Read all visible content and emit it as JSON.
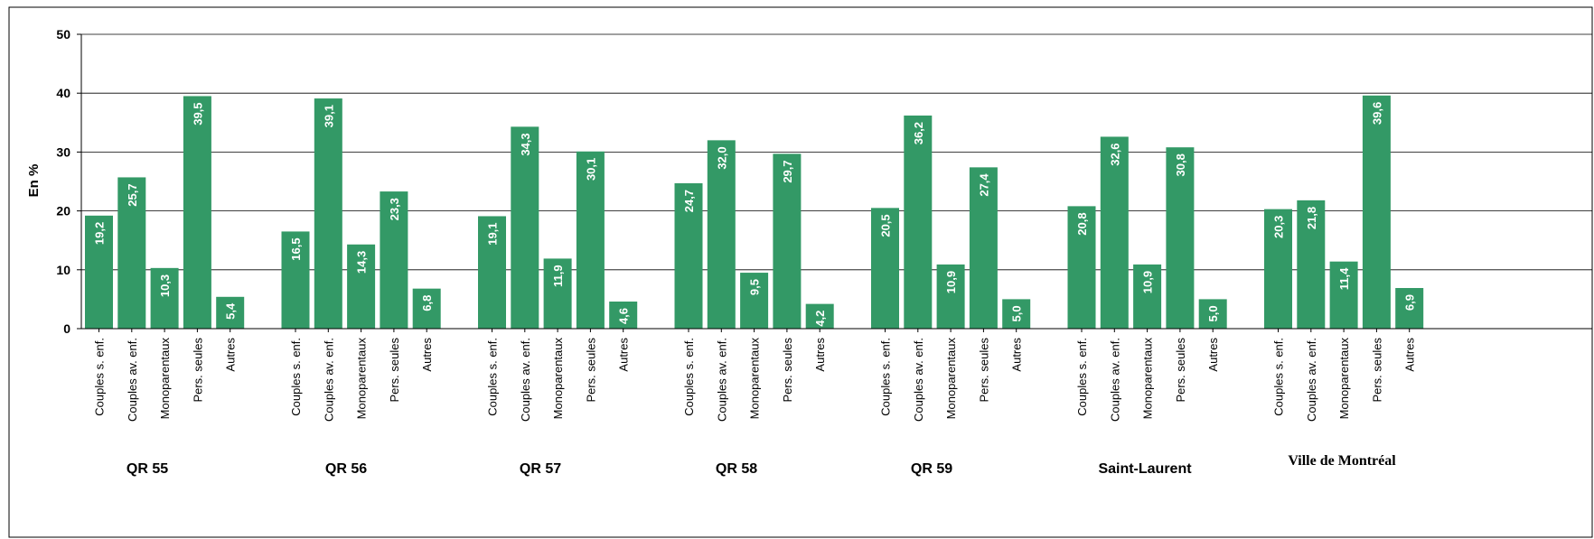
{
  "chart_data": {
    "type": "bar",
    "title": "",
    "title_fragment": "",
    "ylabel": "En %",
    "xlabel": "",
    "ylim": [
      0,
      50
    ],
    "yticks": [
      0,
      10,
      20,
      30,
      40,
      50
    ],
    "grid": true,
    "bar_color": "#339966",
    "categories": [
      "Couples s. enf.",
      "Couples av. enf.",
      "Monoparentaux",
      "Pers. seules",
      "Autres"
    ],
    "groups": [
      {
        "name": "QR 55",
        "values": [
          19.2,
          25.7,
          10.3,
          39.5,
          5.4
        ],
        "labels": [
          "19,2",
          "25,7",
          "10,3",
          "39,5",
          "5,4"
        ]
      },
      {
        "name": "QR 56",
        "values": [
          16.5,
          39.1,
          14.3,
          23.3,
          6.8
        ],
        "labels": [
          "16,5",
          "39,1",
          "14,3",
          "23,3",
          "6,8"
        ]
      },
      {
        "name": "QR 57",
        "values": [
          19.1,
          34.3,
          11.9,
          30.1,
          4.6
        ],
        "labels": [
          "19,1",
          "34,3",
          "11,9",
          "30,1",
          "4,6"
        ]
      },
      {
        "name": "QR 58",
        "values": [
          24.7,
          32.0,
          9.5,
          29.7,
          4.2
        ],
        "labels": [
          "24,7",
          "32,0",
          "9,5",
          "29,7",
          "4,2"
        ]
      },
      {
        "name": "QR 59",
        "values": [
          20.5,
          36.2,
          10.9,
          27.4,
          5.0
        ],
        "labels": [
          "20,5",
          "36,2",
          "10,9",
          "27,4",
          "5,0"
        ]
      },
      {
        "name": "Saint-Laurent",
        "values": [
          20.8,
          32.6,
          10.9,
          30.8,
          5.0
        ],
        "labels": [
          "20,8",
          "32,6",
          "10,9",
          "30,8",
          "5,0"
        ]
      },
      {
        "name": "Ville de Montréal",
        "values": [
          20.3,
          21.8,
          11.4,
          39.6,
          6.9
        ],
        "labels": [
          "20,3",
          "21,8",
          "11,4",
          "39,6",
          "6,9"
        ]
      }
    ]
  }
}
